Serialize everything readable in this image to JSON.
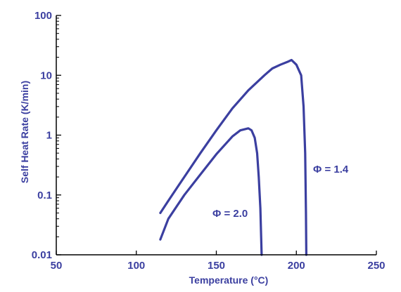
{
  "chart_data": {
    "type": "line",
    "xlabel": "Temperature (°C)",
    "ylabel": "Self Heat Rate (K/min)",
    "xlim": [
      50,
      250
    ],
    "ylim": [
      0.01,
      100
    ],
    "y_scale": "log",
    "x_ticks": [
      50,
      100,
      150,
      200,
      250
    ],
    "x_tick_labels": [
      "50",
      "100",
      "150",
      "200",
      "250"
    ],
    "y_ticks": [
      0.01,
      0.1,
      1,
      10,
      100
    ],
    "y_tick_labels": [
      "0.01",
      "0.1",
      "1",
      "10",
      "100"
    ],
    "grid": false,
    "line_color": "#3b3fa0",
    "text_color": "#3b3fa0",
    "series": [
      {
        "label": "Φ = 1.4",
        "x": [
          115,
          120,
          130,
          140,
          150,
          160,
          170,
          180,
          185,
          190,
          195,
          197,
          200,
          203,
          204.5,
          205.5,
          206,
          206.2
        ],
        "y": [
          0.05,
          0.08,
          0.2,
          0.5,
          1.2,
          2.8,
          5.6,
          10,
          13,
          15,
          17,
          18,
          15,
          10,
          3,
          0.5,
          0.05,
          0.01
        ]
      },
      {
        "label": "Φ = 2.0",
        "x": [
          115,
          120,
          130,
          140,
          150,
          160,
          165,
          170,
          172,
          174,
          175.5,
          176.5,
          177.5,
          178,
          178.3
        ],
        "y": [
          0.018,
          0.04,
          0.1,
          0.22,
          0.48,
          0.95,
          1.2,
          1.3,
          1.2,
          0.9,
          0.5,
          0.2,
          0.06,
          0.02,
          0.01
        ]
      }
    ]
  }
}
